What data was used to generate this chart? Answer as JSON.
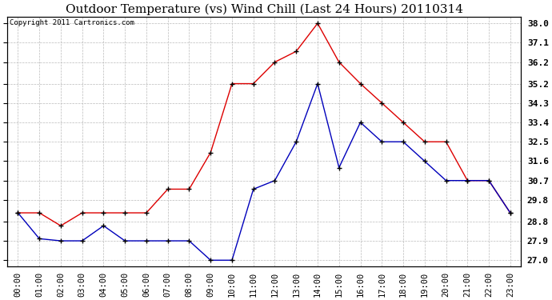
{
  "title": "Outdoor Temperature (vs) Wind Chill (Last 24 Hours) 20110314",
  "copyright": "Copyright 2011 Cartronics.com",
  "x_labels": [
    "00:00",
    "01:00",
    "02:00",
    "03:00",
    "04:00",
    "05:00",
    "06:00",
    "07:00",
    "08:00",
    "09:00",
    "10:00",
    "11:00",
    "12:00",
    "13:00",
    "14:00",
    "15:00",
    "16:00",
    "17:00",
    "18:00",
    "19:00",
    "20:00",
    "21:00",
    "22:00",
    "23:00"
  ],
  "temp_red": [
    29.2,
    29.2,
    28.6,
    29.2,
    29.2,
    29.2,
    29.2,
    30.3,
    30.3,
    32.0,
    35.2,
    35.2,
    36.2,
    36.7,
    38.0,
    36.2,
    35.2,
    34.3,
    33.4,
    32.5,
    32.5,
    30.7,
    30.7,
    29.2
  ],
  "wind_blue": [
    29.2,
    28.0,
    27.9,
    27.9,
    28.6,
    27.9,
    27.9,
    27.9,
    27.9,
    27.0,
    27.0,
    30.3,
    30.7,
    32.5,
    35.2,
    31.3,
    33.4,
    32.5,
    32.5,
    31.6,
    30.7,
    30.7,
    30.7,
    29.2
  ],
  "y_ticks": [
    27.0,
    27.9,
    28.8,
    29.8,
    30.7,
    31.6,
    32.5,
    33.4,
    34.3,
    35.2,
    36.2,
    37.1,
    38.0
  ],
  "ylim_min": 26.7,
  "ylim_max": 38.3,
  "red_color": "#dd0000",
  "blue_color": "#0000bb",
  "grid_color": "#bbbbbb",
  "bg_color": "#ffffff",
  "title_fontsize": 11,
  "copyright_fontsize": 6.5,
  "tick_fontsize": 7.5,
  "ytick_fontsize": 8.0
}
